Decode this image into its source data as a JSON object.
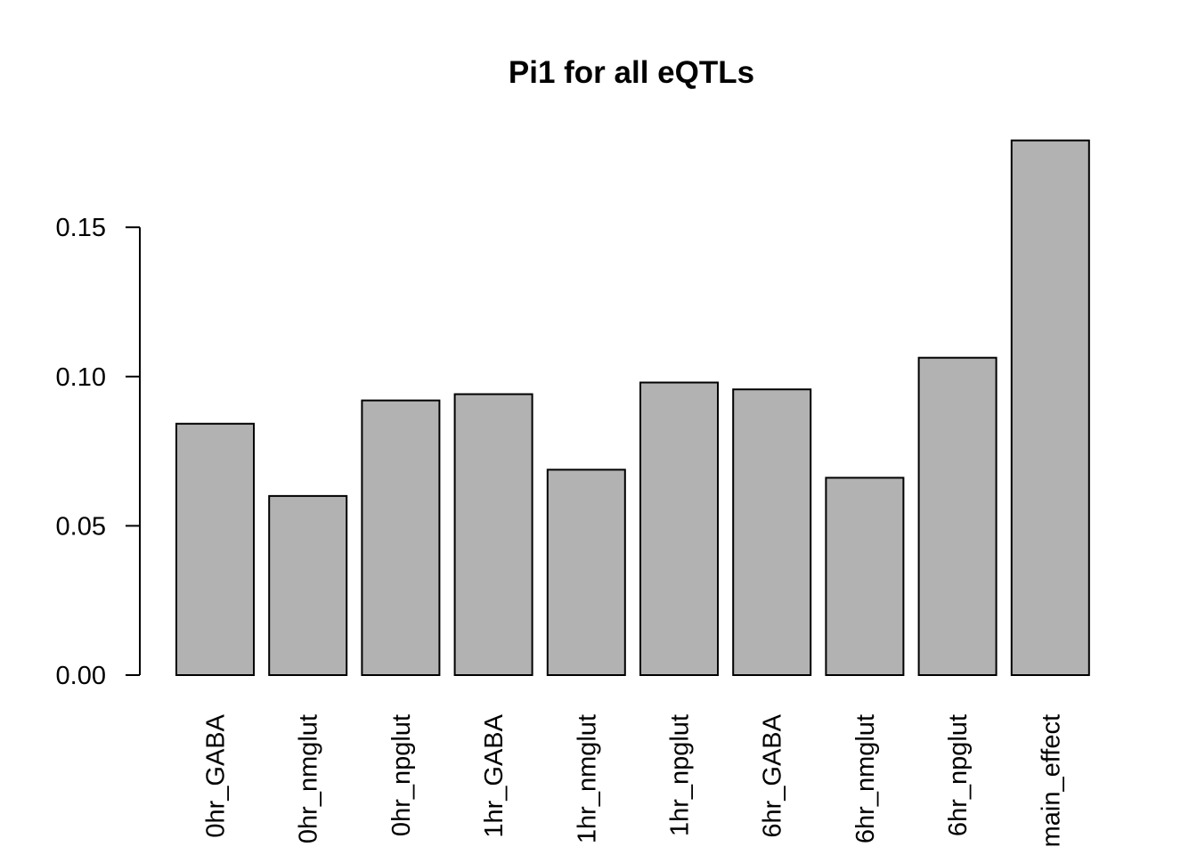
{
  "chart_data": {
    "type": "bar",
    "title": "Pi1 for all eQTLs",
    "xlabel": "",
    "ylabel": "",
    "categories": [
      "0hr_GABA",
      "0hr_nmglut",
      "0hr_npglut",
      "1hr_GABA",
      "1hr_nmglut",
      "1hr_npglut",
      "6hr_GABA",
      "6hr_nmglut",
      "6hr_npglut",
      "main_effect"
    ],
    "values": [
      0.0842,
      0.06,
      0.092,
      0.0941,
      0.0688,
      0.098,
      0.0957,
      0.0661,
      0.1063,
      0.1791
    ],
    "y_ticks": [
      "0.00",
      "0.05",
      "0.10",
      "0.15"
    ],
    "y_tick_values": [
      0,
      0.05,
      0.1,
      0.15
    ],
    "ylim": [
      0,
      0.1791
    ],
    "grid": false,
    "legend": "none",
    "bar_fill": "#b2b2b2",
    "bar_stroke": "#000000"
  }
}
